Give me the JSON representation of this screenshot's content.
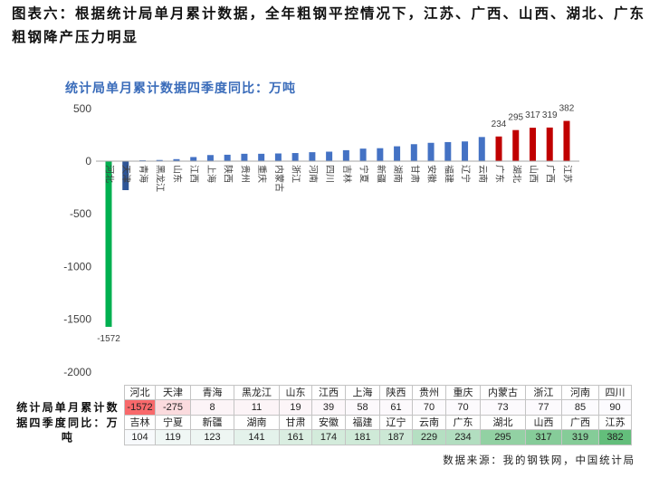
{
  "title": [
    "图表六：根据统计局单月累计数据，全年粗钢平控情况下，江苏、广西、山西、湖北、广东",
    "粗钢降产压力明显"
  ],
  "chart_data": {
    "type": "bar",
    "title": "统计局单月累计数据四季度同比：万吨",
    "categories": [
      "河北",
      "天津",
      "青海",
      "黑龙江",
      "山东",
      "江西",
      "上海",
      "陕西",
      "贵州",
      "重庆",
      "内蒙古",
      "浙江",
      "河南",
      "四川",
      "吉林",
      "宁夏",
      "新疆",
      "湖南",
      "甘肃",
      "安徽",
      "福建",
      "辽宁",
      "云南",
      "广东",
      "湖北",
      "山西",
      "广西",
      "江苏"
    ],
    "values": [
      -1572,
      -275,
      8,
      11,
      19,
      39,
      58,
      61,
      70,
      70,
      73,
      77,
      85,
      90,
      104,
      119,
      123,
      141,
      161,
      174,
      181,
      187,
      229,
      234,
      295,
      317,
      319,
      382
    ],
    "bar_colors": [
      "#00b050",
      "#2e5597",
      "#4472c4",
      "#4472c4",
      "#4472c4",
      "#4472c4",
      "#4472c4",
      "#4472c4",
      "#4472c4",
      "#4472c4",
      "#4472c4",
      "#4472c4",
      "#4472c4",
      "#4472c4",
      "#4472c4",
      "#4472c4",
      "#4472c4",
      "#4472c4",
      "#4472c4",
      "#4472c4",
      "#4472c4",
      "#4472c4",
      "#4472c4",
      "#c00000",
      "#c00000",
      "#c00000",
      "#c00000",
      "#c00000"
    ],
    "y_ticks": [
      500,
      0,
      -500,
      -1000,
      -1500,
      -2000
    ],
    "ylim": [
      -2000,
      500
    ],
    "grid": false,
    "legend": "none"
  },
  "table": {
    "row_label": "统计局单月累计数据四季度同比：万吨",
    "rows": [
      {
        "headers": [
          "河北",
          "天津",
          "青海",
          "黑龙江",
          "山东",
          "江西",
          "上海",
          "陕西",
          "贵州",
          "重庆",
          "内蒙古",
          "浙江",
          "河南",
          "四川"
        ],
        "values": [
          -1572,
          -275,
          8,
          11,
          19,
          39,
          58,
          61,
          70,
          70,
          73,
          77,
          85,
          90
        ]
      },
      {
        "headers": [
          "吉林",
          "宁夏",
          "新疆",
          "湖南",
          "甘肃",
          "安徽",
          "福建",
          "辽宁",
          "云南",
          "广东",
          "湖北",
          "山西",
          "广西",
          "江苏"
        ],
        "values": [
          104,
          119,
          123,
          141,
          161,
          174,
          181,
          187,
          229,
          234,
          295,
          317,
          319,
          382
        ]
      }
    ],
    "scale_colors": {
      "min": "#f8696b",
      "mid": "#fcfcff",
      "max": "#63be7b"
    }
  },
  "source": "数据来源：我的钢铁网，中国统计局"
}
